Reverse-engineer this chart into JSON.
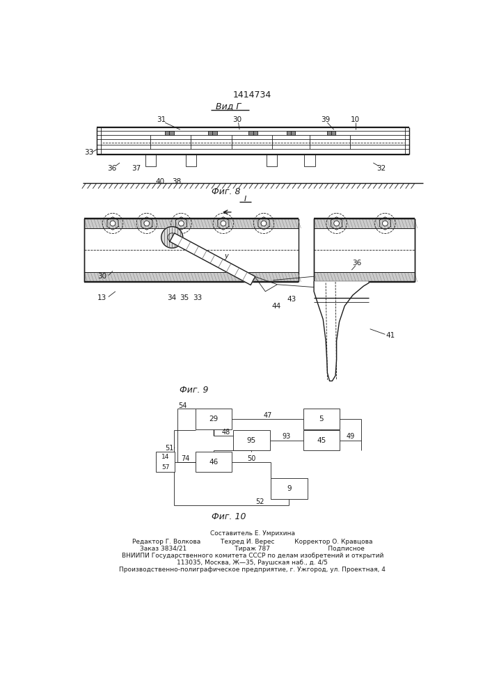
{
  "patent_number": "1414734",
  "bg_color": "#ffffff",
  "line_color": "#1a1a1a",
  "fig8_label": "Вид Г",
  "fig9_label": "Фиг. 8",
  "fig9_sublabel": "I",
  "fig10_label": "Фиг. 9",
  "fig10b_label": "Фиг. 10",
  "footer_lines": [
    "Составитель Е. Умрихина",
    "Редактор Г. Волкова          Техред И. Верес          Корректор О. Кравцова",
    "Заказ 3834/21                        Тираж 787                             Подписное",
    "ВНИИПИ Государственного комитета СССР по делам изобретений и открытий",
    "113035, Москва, Ж—35, Раушская наб., д. 4/5",
    "Производственно-полиграфическое предприятие, г. Ужгород, ул. Проектная, 4"
  ]
}
